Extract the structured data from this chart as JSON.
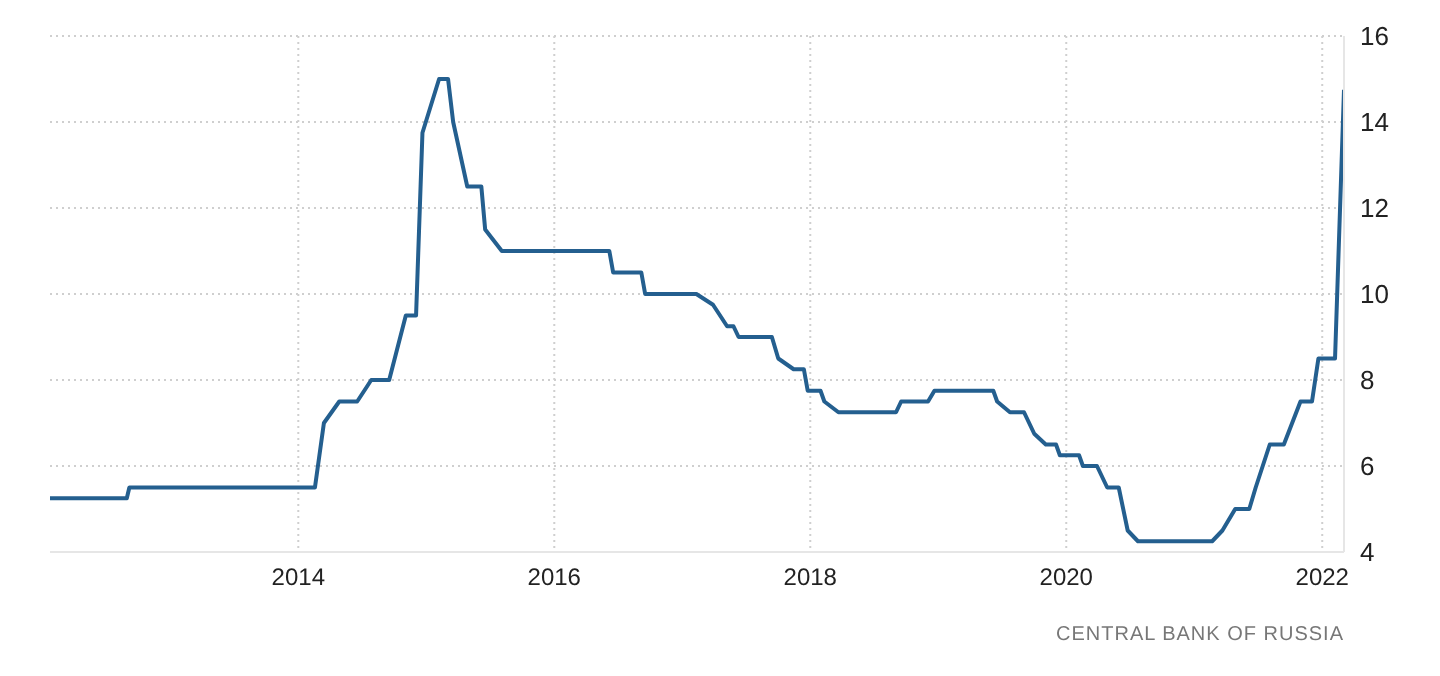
{
  "chart_data": {
    "type": "line",
    "annotations": [
      "CENTRAL BANK OF RUSSIA"
    ],
    "x": [
      2012.06,
      2012.66,
      2012.68,
      2014.13,
      2014.2,
      2014.32,
      2014.46,
      2014.57,
      2014.71,
      2014.84,
      2014.92,
      2014.97,
      2015.1,
      2015.17,
      2015.21,
      2015.32,
      2015.43,
      2015.46,
      2015.59,
      2016.43,
      2016.46,
      2016.68,
      2016.71,
      2017.11,
      2017.24,
      2017.35,
      2017.4,
      2017.44,
      2017.7,
      2017.75,
      2017.87,
      2017.95,
      2017.98,
      2018.08,
      2018.11,
      2018.22,
      2018.67,
      2018.71,
      2018.92,
      2018.97,
      2019.43,
      2019.46,
      2019.56,
      2019.67,
      2019.75,
      2019.84,
      2019.92,
      2019.95,
      2020.1,
      2020.13,
      2020.24,
      2020.32,
      2020.41,
      2020.48,
      2020.56,
      2021.14,
      2021.22,
      2021.32,
      2021.43,
      2021.48,
      2021.59,
      2021.7,
      2021.83,
      2021.92,
      2021.97,
      2022.1,
      2022.17
    ],
    "series": [
      {
        "color": "#245f8f",
        "values": [
          5.25,
          5.25,
          5.5,
          5.5,
          7,
          7.5,
          7.5,
          8,
          8,
          9.5,
          9.5,
          13.75,
          15,
          15,
          14,
          12.5,
          12.5,
          11.5,
          11,
          11,
          10.5,
          10.5,
          10,
          10,
          9.75,
          9.25,
          9.25,
          9,
          9,
          8.5,
          8.25,
          8.25,
          7.75,
          7.75,
          7.5,
          7.25,
          7.25,
          7.5,
          7.5,
          7.75,
          7.75,
          7.5,
          7.25,
          7.25,
          6.75,
          6.5,
          6.5,
          6.25,
          6.25,
          6,
          6,
          5.5,
          5.5,
          4.5,
          4.25,
          4.25,
          4.5,
          5,
          5,
          5.5,
          6.5,
          6.5,
          7.5,
          7.5,
          8.5,
          8.5,
          14.75
        ]
      }
    ],
    "xlim": [
      2012.06,
      2022.17
    ],
    "xticks": [
      2014,
      2016,
      2018,
      2020,
      2022
    ],
    "ylim": [
      4,
      16
    ],
    "yticks": [
      4,
      6,
      8,
      10,
      12,
      14,
      16
    ],
    "grid": true,
    "marker": "none",
    "line_style": "solid"
  }
}
